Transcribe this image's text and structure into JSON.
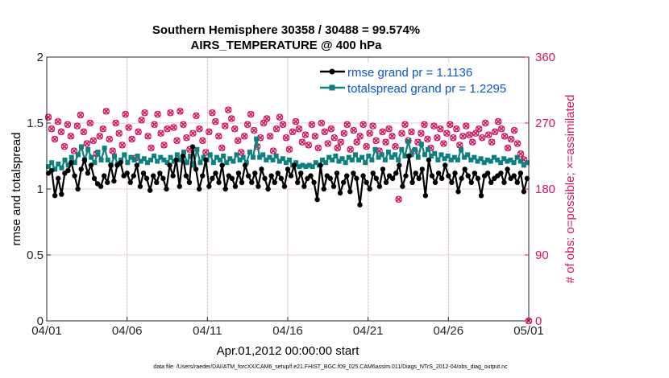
{
  "chart_data": {
    "type": "line",
    "title_line1": "Southern Hemisphere 30358 / 30488 = 99.574%",
    "title_line2": "AIRS_TEMPERATURE @ 400 hPa",
    "ylabel_left": "rmse and totalspread",
    "ylabel_right": "# of obs: o=possible; ×=assimilated",
    "xlabel": "Apr.01,2012 00:00:00 start",
    "footnote": "data file: /Users/raeder/DAI/ATM_forcXX/CAM6_setup/f.e21.FHIST_BGC.f09_025.CAM6assim.011/Diags_NTrS_2012-04/obs_diag_output.nc",
    "x_range_days": [
      0,
      30
    ],
    "x_ticks": [
      0,
      5,
      10,
      15,
      20,
      25,
      30
    ],
    "x_tick_labels": [
      "04/01",
      "04/06",
      "04/11",
      "04/16",
      "04/21",
      "04/26",
      "05/01"
    ],
    "ylim_left": [
      0,
      2
    ],
    "y_ticks_left": [
      0,
      0.5,
      1,
      1.5,
      2
    ],
    "y_tick_labels_left": [
      "0",
      "0.5",
      "1",
      "1.5",
      "2"
    ],
    "ylim_right": [
      0,
      360
    ],
    "y_ticks_right": [
      0,
      90,
      180,
      270,
      360
    ],
    "y_tick_labels_right": [
      "0",
      "90",
      "180",
      "270",
      "360"
    ],
    "grid": true,
    "legend_position": "top-right",
    "series": [
      {
        "name": "rmse grand pr = 1.1136",
        "color": "#000000",
        "axis": "left",
        "values": [
          1.12,
          1.14,
          0.95,
          1.08,
          0.96,
          1.12,
          1.14,
          1.2,
          1.1,
          1.0,
          1.15,
          1.22,
          1.12,
          1.18,
          1.08,
          1.04,
          1.02,
          1.1,
          1.05,
          1.18,
          1.06,
          1.18,
          1.2,
          1.1,
          1.12,
          1.05,
          1.1,
          1.18,
          1.02,
          1.12,
          1.08,
          0.99,
          1.1,
          1.05,
          1.12,
          1.08,
          1.0,
          1.18,
          1.1,
          1.22,
          1.02,
          1.25,
          1.1,
          1.05,
          1.32,
          1.15,
          1.0,
          1.1,
          1.22,
          1.02,
          1.08,
          1.12,
          1.05,
          1.18,
          1.0,
          1.1,
          1.08,
          1.02,
          1.12,
          1.05,
          1.18,
          1.1,
          1.05,
          1.12,
          1.02,
          1.15,
          1.08,
          1.0,
          1.1,
          1.05,
          1.12,
          1.08,
          1.02,
          1.15,
          1.1,
          1.18,
          1.05,
          1.12,
          1.02,
          1.08,
          1.1,
          1.05,
          0.92,
          1.18,
          1.0,
          1.1,
          1.08,
          1.02,
          1.12,
          0.97,
          1.05,
          1.1,
          0.98,
          1.12,
          1.08,
          0.88,
          1.1,
          1.05,
          1.0,
          1.12,
          1.08,
          1.02,
          1.15,
          1.05,
          1.1,
          1.08,
          1.12,
          1.18,
          1.02,
          1.1,
          1.25,
          1.05,
          1.12,
          1.08,
          1.15,
          0.95,
          1.22,
          1.1,
          1.05,
          1.12,
          1.08,
          1.18,
          1.1,
          1.05,
          1.12,
          0.98,
          1.08,
          1.15,
          1.1,
          1.05,
          1.12,
          1.08,
          0.95,
          1.1,
          1.12,
          1.05,
          1.08,
          1.1,
          1.12,
          1.05,
          1.15,
          1.08,
          1.1,
          1.05,
          1.12,
          0.98,
          1.08
        ]
      },
      {
        "name": "totalspread grand pr = 1.2295",
        "color": "#0f8080",
        "axis": "left",
        "values": [
          1.17,
          1.2,
          1.15,
          1.19,
          1.16,
          1.22,
          1.18,
          1.24,
          1.2,
          1.26,
          1.32,
          1.22,
          1.3,
          1.24,
          1.2,
          1.28,
          1.22,
          1.31,
          1.22,
          1.18,
          1.25,
          1.19,
          1.22,
          1.26,
          1.2,
          1.24,
          1.22,
          1.25,
          1.21,
          1.23,
          1.2,
          1.22,
          1.25,
          1.21,
          1.24,
          1.22,
          1.2,
          1.24,
          1.21,
          1.26,
          1.22,
          1.28,
          1.2,
          1.25,
          1.18,
          1.3,
          1.2,
          1.24,
          1.22,
          1.26,
          1.2,
          1.24,
          1.22,
          1.25,
          1.2,
          1.23,
          1.21,
          1.26,
          1.22,
          1.24,
          1.2,
          1.28,
          1.24,
          1.38,
          1.24,
          1.26,
          1.22,
          1.24,
          1.22,
          1.25,
          1.21,
          1.23,
          1.2,
          1.22,
          1.18,
          1.2,
          1.17,
          1.18,
          1.17,
          1.18,
          1.17,
          1.2,
          1.18,
          1.22,
          1.2,
          1.24,
          1.22,
          1.25,
          1.21,
          1.23,
          1.2,
          1.24,
          1.22,
          1.26,
          1.22,
          1.24,
          1.2,
          1.25,
          1.22,
          1.3,
          1.24,
          1.26,
          1.22,
          1.28,
          1.24,
          1.26,
          1.22,
          1.3,
          1.25,
          1.36,
          1.26,
          1.3,
          1.24,
          1.34,
          1.26,
          1.3,
          1.25,
          1.27,
          1.22,
          1.26,
          1.23,
          1.25,
          1.22,
          1.24,
          1.22,
          1.3,
          1.24,
          1.26,
          1.22,
          1.24,
          1.21,
          1.23,
          1.2,
          1.22,
          1.21,
          1.24,
          1.22,
          1.2,
          1.23,
          1.21,
          1.22,
          1.2,
          1.24,
          1.21,
          1.18,
          1.2
        ]
      },
      {
        "name": "obs possible (o)",
        "color": "#d6145f",
        "axis": "right",
        "marker": "circle",
        "values": [
          278,
          262,
          248,
          272,
          258,
          238,
          268,
          252,
          232,
          266,
          281,
          258,
          242,
          270,
          246,
          228,
          252,
          262,
          286,
          248,
          232,
          270,
          256,
          240,
          282,
          264,
          248,
          222,
          258,
          274,
          284,
          252,
          236,
          268,
          282,
          256,
          240,
          262,
          284,
          264,
          246,
          286,
          268,
          250,
          234,
          256,
          280,
          262,
          246,
          230,
          258,
          284,
          272,
          252,
          236,
          266,
          288,
          276,
          262,
          246,
          230,
          252,
          268,
          282,
          260,
          238,
          250,
          270,
          276,
          252,
          232,
          262,
          278,
          268,
          250,
          234,
          258,
          272,
          262,
          244,
          254,
          240,
          268,
          252,
          236,
          270,
          258,
          242,
          262,
          250,
          236,
          244,
          256,
          268,
          234,
          260,
          244,
          252,
          268,
          238,
          256,
          266,
          246,
          232,
          258,
          244,
          262,
          252,
          238,
          166,
          256,
          268,
          246,
          258,
          232,
          244,
          256,
          268,
          248,
          236,
          266,
          250,
          262,
          242,
          256,
          268,
          250,
          262,
          240,
          252,
          266,
          254,
          244,
          256,
          262,
          250,
          270,
          254,
          244,
          258,
          272,
          262,
          252,
          236,
          248,
          260,
          242,
          228,
          220,
          0
        ]
      },
      {
        "name": "obs assimilated (×)",
        "color": "#d6145f",
        "axis": "right",
        "marker": "x",
        "values": [
          278,
          262,
          248,
          272,
          258,
          238,
          268,
          252,
          232,
          266,
          281,
          258,
          242,
          270,
          246,
          228,
          252,
          262,
          286,
          248,
          232,
          270,
          256,
          240,
          282,
          264,
          248,
          222,
          258,
          274,
          284,
          252,
          236,
          268,
          282,
          256,
          240,
          262,
          284,
          264,
          246,
          286,
          268,
          250,
          234,
          256,
          280,
          262,
          246,
          230,
          258,
          284,
          272,
          252,
          236,
          266,
          288,
          276,
          262,
          246,
          230,
          252,
          268,
          282,
          260,
          238,
          250,
          270,
          276,
          252,
          232,
          262,
          278,
          268,
          250,
          234,
          258,
          272,
          262,
          244,
          254,
          240,
          268,
          252,
          236,
          270,
          258,
          242,
          262,
          250,
          236,
          244,
          256,
          268,
          234,
          260,
          244,
          252,
          268,
          238,
          256,
          266,
          246,
          232,
          258,
          244,
          262,
          252,
          238,
          166,
          256,
          268,
          246,
          258,
          232,
          244,
          256,
          268,
          248,
          236,
          266,
          250,
          262,
          242,
          256,
          268,
          250,
          262,
          240,
          252,
          266,
          254,
          244,
          256,
          262,
          250,
          270,
          254,
          244,
          258,
          272,
          262,
          252,
          236,
          248,
          260,
          242,
          228,
          220,
          0
        ]
      }
    ]
  }
}
